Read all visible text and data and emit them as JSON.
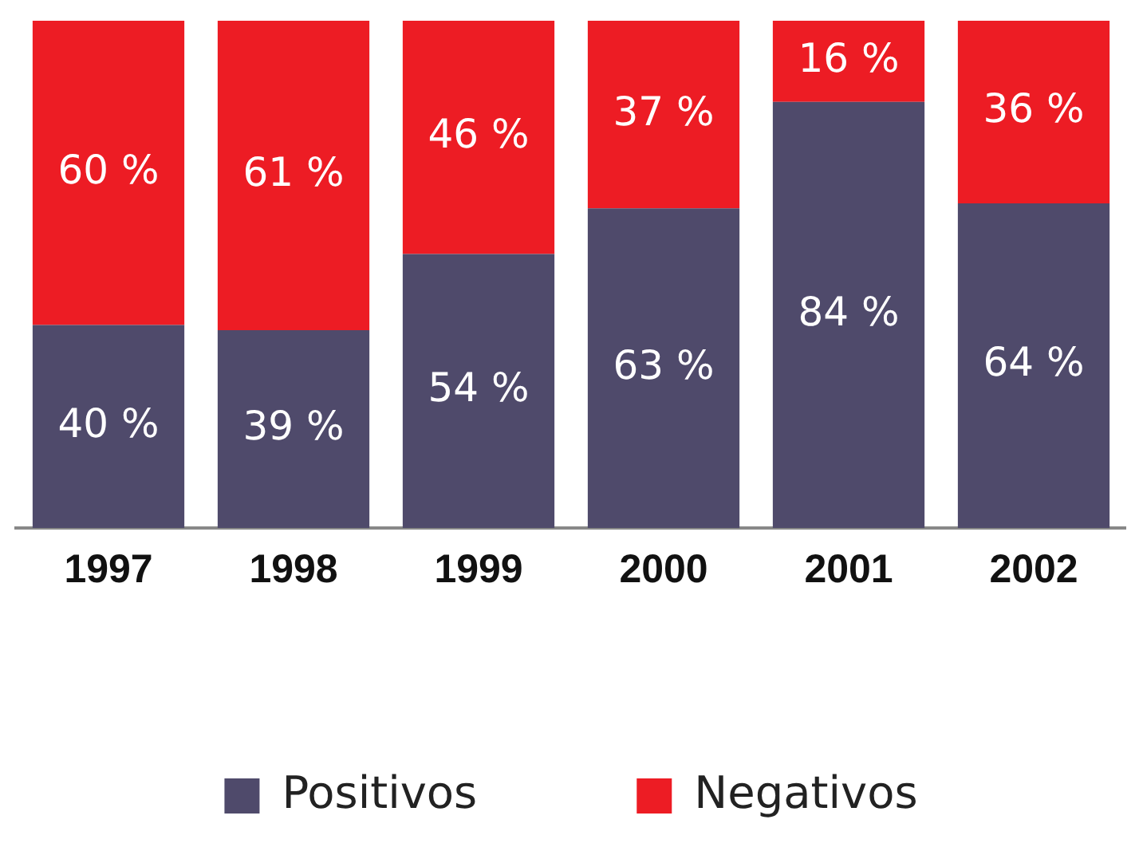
{
  "chart_data": {
    "type": "bar",
    "stacked": true,
    "legend": "bottom",
    "categories": [
      "1997",
      "1998",
      "1999",
      "2000",
      "2001",
      "2002"
    ],
    "series": [
      {
        "name": "Positivos",
        "color": "#4f4a6b",
        "values": [
          40,
          39,
          54,
          63,
          84,
          64
        ],
        "value_labels": [
          "40 %",
          "39 %",
          "54 %",
          "63 %",
          "84 %",
          "64 %"
        ]
      },
      {
        "name": "Negativos",
        "color": "#ed1c24",
        "values": [
          60,
          61,
          46,
          37,
          16,
          36
        ],
        "value_labels": [
          "60 %",
          "61 %",
          "46 %",
          "37 %",
          "16 %",
          "36 %"
        ]
      }
    ]
  }
}
